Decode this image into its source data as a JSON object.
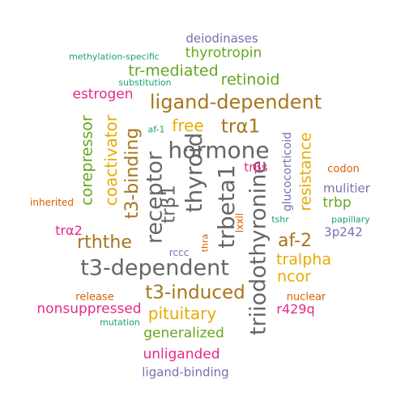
{
  "colors": {
    "green": "#66a61e",
    "teal": "#1b9e77",
    "orange": "#d95f02",
    "purple": "#7570b3",
    "pink": "#e7298a",
    "gold": "#e6ab02",
    "brown": "#a6761d",
    "gray": "#666666"
  },
  "words": [
    {
      "text": "hormone",
      "color": "gray"
    },
    {
      "text": "receptor",
      "color": "gray"
    },
    {
      "text": "thyroid",
      "color": "gray"
    },
    {
      "text": "t3-dependent",
      "color": "gray"
    },
    {
      "text": "triiodothyronine",
      "color": "gray"
    },
    {
      "text": "trbeta1",
      "color": "gray"
    },
    {
      "text": "trβ1",
      "color": "gray"
    },
    {
      "text": "ligand-dependent",
      "color": "brown"
    },
    {
      "text": "t3-induced",
      "color": "brown"
    },
    {
      "text": "trα1",
      "color": "brown"
    },
    {
      "text": "t3-binding",
      "color": "brown"
    },
    {
      "text": "rththe",
      "color": "brown"
    },
    {
      "text": "af-2",
      "color": "brown"
    },
    {
      "text": "coactivator",
      "color": "gold"
    },
    {
      "text": "free",
      "color": "gold"
    },
    {
      "text": "resistance",
      "color": "gold"
    },
    {
      "text": "pituitary",
      "color": "gold"
    },
    {
      "text": "tralpha",
      "color": "gold"
    },
    {
      "text": "ncor",
      "color": "gold"
    },
    {
      "text": "corepressor",
      "color": "green"
    },
    {
      "text": "retinoid",
      "color": "green"
    },
    {
      "text": "tr-mediated",
      "color": "green"
    },
    {
      "text": "thyrotropin",
      "color": "green"
    },
    {
      "text": "generalized",
      "color": "green"
    },
    {
      "text": "trbp",
      "color": "green"
    },
    {
      "text": "estrogen",
      "color": "pink"
    },
    {
      "text": "nonsuppressed",
      "color": "pink"
    },
    {
      "text": "unliganded",
      "color": "pink"
    },
    {
      "text": "r429q",
      "color": "pink"
    },
    {
      "text": "trα2",
      "color": "pink"
    },
    {
      "text": "trβs",
      "color": "pink"
    },
    {
      "text": "deiodinases",
      "color": "purple"
    },
    {
      "text": "ligand-binding",
      "color": "purple"
    },
    {
      "text": "glucocorticoid",
      "color": "purple"
    },
    {
      "text": "mulitier",
      "color": "purple"
    },
    {
      "text": "3p242",
      "color": "purple"
    },
    {
      "text": "rccc",
      "color": "purple"
    },
    {
      "text": "lxxll",
      "color": "orange"
    },
    {
      "text": "inherited",
      "color": "orange"
    },
    {
      "text": "codon",
      "color": "orange"
    },
    {
      "text": "release",
      "color": "orange"
    },
    {
      "text": "nuclear",
      "color": "orange"
    },
    {
      "text": "thra",
      "color": "orange"
    },
    {
      "text": "methylation-specific",
      "color": "teal"
    },
    {
      "text": "substitution",
      "color": "teal"
    },
    {
      "text": "af-1",
      "color": "teal"
    },
    {
      "text": "tshr",
      "color": "teal"
    },
    {
      "text": "papillary",
      "color": "teal"
    },
    {
      "text": "mutation",
      "color": "teal"
    }
  ]
}
